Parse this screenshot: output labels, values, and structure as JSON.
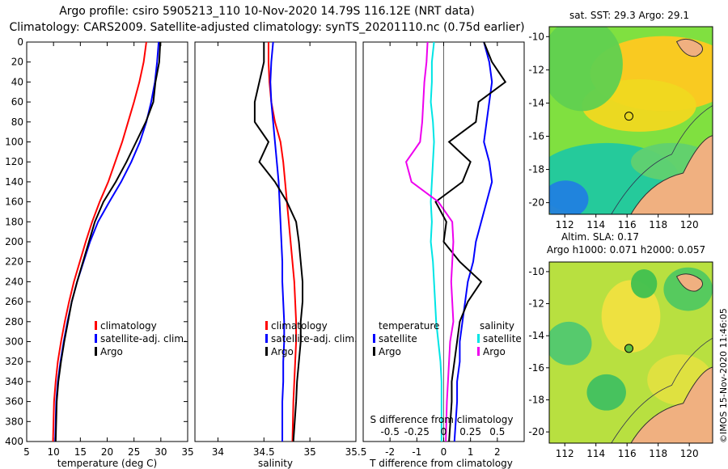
{
  "title_line1": "Argo profile: csiro 5905213_110 10-Nov-2020 14.79S 116.12E (NRT data)",
  "title_line2": "Climatology: CARS2009. Satellite-adjusted climatology: synTS_20201110.nc (0.75d earlier)",
  "footer_stamp": "©IMOS 15-Nov-2020 11:46:05",
  "colors": {
    "climatology": "#ff0000",
    "satellite": "#0000ff",
    "argo": "#000000",
    "temp_diff": "#00e5e5",
    "sal_diff": "#ee00ee"
  },
  "chart_data": [
    {
      "type": "line",
      "name": "temperature-profile",
      "xlabel": "temperature (deg C)",
      "xlim": [
        5,
        35
      ],
      "ylim": [
        400,
        0
      ],
      "xticks": [
        5,
        10,
        15,
        20,
        25,
        30,
        35
      ],
      "yticks": [
        0,
        20,
        40,
        60,
        80,
        100,
        120,
        140,
        160,
        180,
        200,
        220,
        240,
        260,
        280,
        300,
        320,
        340,
        360,
        380,
        400
      ],
      "legend": [
        "climatology",
        "satellite-adj. clim.",
        "Argo"
      ],
      "series": [
        {
          "name": "climatology",
          "color": "#ff0000",
          "x": [
            27.3,
            26.8,
            26.0,
            25.0,
            23.9,
            22.8,
            21.5,
            20.2,
            18.6,
            17.2,
            16.0,
            14.9,
            13.8,
            12.9,
            12.1,
            11.4,
            10.8,
            10.4,
            10.1,
            9.9
          ],
          "y": [
            0,
            20,
            40,
            60,
            80,
            100,
            120,
            140,
            160,
            180,
            200,
            220,
            240,
            260,
            280,
            300,
            320,
            340,
            360,
            400
          ]
        },
        {
          "name": "satellite-adj. clim.",
          "color": "#0000ff",
          "x": [
            29.6,
            29.3,
            28.9,
            28.2,
            27.3,
            26.1,
            24.5,
            22.6,
            20.4,
            18.3,
            16.8,
            15.6,
            14.4,
            13.4,
            12.6,
            11.9,
            11.3,
            10.8,
            10.5,
            10.3
          ],
          "y": [
            0,
            20,
            40,
            60,
            80,
            100,
            120,
            140,
            160,
            180,
            200,
            220,
            240,
            260,
            280,
            300,
            320,
            340,
            360,
            400
          ]
        },
        {
          "name": "Argo",
          "color": "#000000",
          "x": [
            29.9,
            29.7,
            29.0,
            28.6,
            27.2,
            25.4,
            23.6,
            21.6,
            19.3,
            17.7,
            16.6,
            15.5,
            14.4,
            13.4,
            12.7,
            12.0,
            11.4,
            10.9,
            10.6,
            10.4
          ],
          "y": [
            0,
            20,
            40,
            60,
            80,
            100,
            120,
            140,
            160,
            180,
            200,
            220,
            240,
            260,
            280,
            300,
            320,
            340,
            360,
            400
          ]
        }
      ]
    },
    {
      "type": "line",
      "name": "salinity-profile",
      "xlabel": "salinity",
      "xlim": [
        33.75,
        35.5
      ],
      "ylim": [
        400,
        0
      ],
      "xticks": [
        34,
        34.5,
        35,
        35.5
      ],
      "xticklabels": [
        "34",
        "34.5",
        "35",
        "35.5"
      ],
      "legend": [
        "climatology",
        "satellite-adj. clim.",
        "Argo"
      ],
      "series": [
        {
          "name": "climatology",
          "color": "#ff0000",
          "x": [
            34.55,
            34.55,
            34.56,
            34.58,
            34.62,
            34.68,
            34.71,
            34.73,
            34.75,
            34.77,
            34.79,
            34.81,
            34.83,
            34.84,
            34.85,
            34.85,
            34.84,
            34.83,
            34.82,
            34.81
          ],
          "y": [
            0,
            20,
            40,
            60,
            80,
            100,
            120,
            140,
            160,
            180,
            200,
            220,
            240,
            260,
            280,
            300,
            320,
            340,
            360,
            400
          ]
        },
        {
          "name": "satellite-adj. clim.",
          "color": "#0000ff",
          "x": [
            34.6,
            34.58,
            34.57,
            34.58,
            34.6,
            34.62,
            34.64,
            34.66,
            34.67,
            34.68,
            34.69,
            34.7,
            34.7,
            34.71,
            34.72,
            34.72,
            34.71,
            34.71,
            34.7,
            34.7
          ],
          "y": [
            0,
            20,
            40,
            60,
            80,
            100,
            120,
            140,
            160,
            180,
            200,
            220,
            240,
            260,
            280,
            300,
            320,
            340,
            360,
            400
          ]
        },
        {
          "name": "Argo",
          "color": "#000000",
          "x": [
            34.5,
            34.5,
            34.45,
            34.4,
            34.4,
            34.55,
            34.45,
            34.62,
            34.75,
            34.85,
            34.88,
            34.9,
            34.92,
            34.92,
            34.9,
            34.9,
            34.88,
            34.86,
            34.85,
            34.82
          ],
          "y": [
            0,
            20,
            40,
            60,
            80,
            100,
            120,
            140,
            160,
            180,
            200,
            220,
            240,
            260,
            280,
            300,
            320,
            340,
            360,
            400
          ]
        }
      ]
    },
    {
      "type": "line",
      "name": "difference-profile",
      "xlabel": "T difference from climatology",
      "xlim": [
        -3,
        3
      ],
      "ylim": [
        400,
        0
      ],
      "xticks": [
        -2,
        -1,
        0,
        1,
        2
      ],
      "top_axis_label": "S difference from climatology",
      "top_xticks": [
        -0.5,
        -0.25,
        0,
        0.25,
        0.5
      ],
      "top_xticklabels": [
        "-0.5",
        "-0.25",
        "0",
        "0.25",
        "0.5"
      ],
      "legend_temperature_header": "temperature",
      "legend_salinity_header": "salinity",
      "legend_temperature": [
        "satellite",
        "Argo"
      ],
      "legend_salinity": [
        "satellite",
        "Argo"
      ],
      "series": [
        {
          "name": "T satellite",
          "color": "#0000ff",
          "x": [
            1.5,
            1.7,
            1.8,
            1.7,
            1.6,
            1.5,
            1.7,
            1.8,
            1.6,
            1.4,
            1.2,
            1.1,
            0.9,
            0.8,
            0.7,
            0.6,
            0.6,
            0.5,
            0.5,
            0.4
          ],
          "y": [
            0,
            20,
            40,
            60,
            80,
            100,
            120,
            140,
            160,
            180,
            200,
            220,
            240,
            260,
            280,
            300,
            320,
            340,
            360,
            400
          ]
        },
        {
          "name": "T Argo",
          "color": "#000000",
          "x": [
            1.5,
            1.8,
            2.3,
            1.3,
            1.2,
            0.2,
            1.0,
            0.7,
            -0.3,
            0.1,
            0.0,
            0.6,
            1.4,
            0.9,
            0.6,
            0.5,
            0.4,
            0.3,
            0.3,
            0.2
          ],
          "y": [
            0,
            20,
            40,
            60,
            80,
            100,
            120,
            140,
            160,
            180,
            200,
            220,
            240,
            260,
            280,
            300,
            320,
            340,
            360,
            400
          ]
        },
        {
          "name": "S satellite",
          "color": "#00e5e5",
          "x": [
            -0.09,
            -0.11,
            -0.11,
            -0.12,
            -0.1,
            -0.09,
            -0.1,
            -0.11,
            -0.12,
            -0.11,
            -0.12,
            -0.1,
            -0.09,
            -0.08,
            -0.07,
            -0.05,
            -0.03,
            -0.02,
            -0.02,
            -0.02
          ],
          "y": [
            0,
            20,
            40,
            60,
            80,
            100,
            120,
            140,
            160,
            180,
            200,
            220,
            240,
            260,
            280,
            300,
            320,
            340,
            360,
            400
          ]
        },
        {
          "name": "S Argo",
          "color": "#ee00ee",
          "x": [
            -0.15,
            -0.16,
            -0.18,
            -0.19,
            -0.2,
            -0.22,
            -0.35,
            -0.3,
            -0.05,
            0.08,
            0.09,
            0.08,
            0.07,
            0.08,
            0.09,
            0.06,
            0.05,
            0.04,
            0.03,
            0.02
          ],
          "y": [
            0,
            20,
            40,
            60,
            80,
            100,
            120,
            140,
            160,
            180,
            200,
            220,
            240,
            260,
            280,
            300,
            320,
            340,
            360,
            400
          ]
        }
      ]
    },
    {
      "type": "heatmap",
      "name": "sst-map",
      "title": "sat. SST: 29.3 Argo: 29.1",
      "xlim": [
        111,
        121.5
      ],
      "ylim": [
        -20.7,
        -9.4
      ],
      "xticks": [
        112,
        114,
        116,
        118,
        120
      ],
      "yticks": [
        -10,
        -12,
        -14,
        -16,
        -18,
        -20
      ],
      "argo_position": {
        "lon": 116.12,
        "lat": -14.79
      }
    },
    {
      "type": "heatmap",
      "name": "sla-map",
      "title_line1": "Altim. SLA: 0.17",
      "title_line2": "Argo h1000: 0.071 h2000: 0.057",
      "xlim": [
        111,
        121.5
      ],
      "ylim": [
        -20.7,
        -9.4
      ],
      "xticks": [
        112,
        114,
        116,
        118,
        120
      ],
      "yticks": [
        -10,
        -12,
        -14,
        -16,
        -18,
        -20
      ],
      "argo_position": {
        "lon": 116.12,
        "lat": -14.79
      }
    }
  ]
}
